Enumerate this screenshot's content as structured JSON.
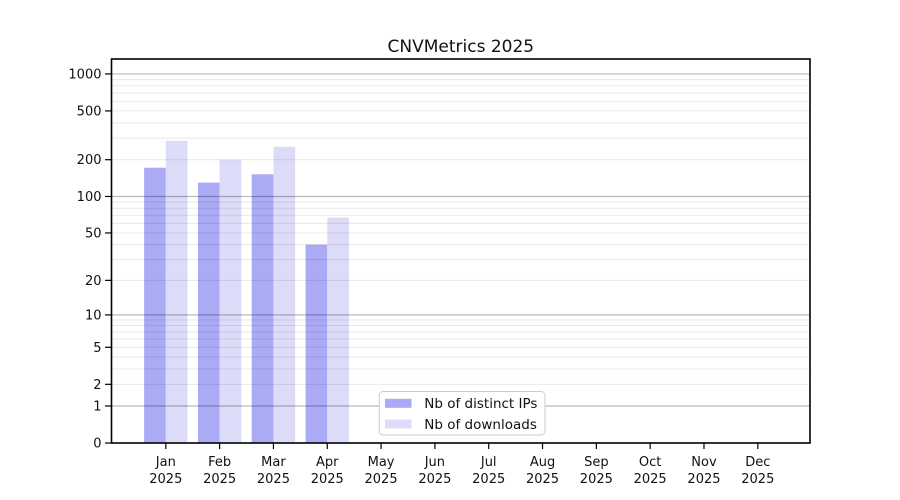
{
  "title": "CNVMetrics 2025",
  "chart_data": {
    "type": "bar",
    "title": "CNVMetrics 2025",
    "categories": [
      "Jan",
      "Feb",
      "Mar",
      "Apr",
      "May",
      "Jun",
      "Jul",
      "Aug",
      "Sep",
      "Oct",
      "Nov",
      "Dec"
    ],
    "year": "2025",
    "series": [
      {
        "name": "Nb of distinct IPs",
        "color": "#aaaaf5",
        "values": [
          172,
          130,
          152,
          40,
          0,
          0,
          0,
          0,
          0,
          0,
          0,
          0
        ]
      },
      {
        "name": "Nb of downloads",
        "color": "#dcdcf8",
        "values": [
          285,
          200,
          255,
          67,
          0,
          0,
          0,
          0,
          0,
          0,
          0,
          0
        ]
      }
    ],
    "y_ticks": [
      0,
      1,
      2,
      5,
      10,
      20,
      50,
      100,
      200,
      500,
      1000
    ],
    "y_scale": "log10(value+1)",
    "ylim": [
      0,
      1320
    ],
    "grid": true,
    "legend_position": "inside-bottom-center",
    "colors": {
      "axis": "#000000",
      "major_grid": "rgba(0,0,0,0.27)",
      "minor_grid": "rgba(0,0,0,0.09)",
      "legend_border": "#cccccc"
    }
  }
}
